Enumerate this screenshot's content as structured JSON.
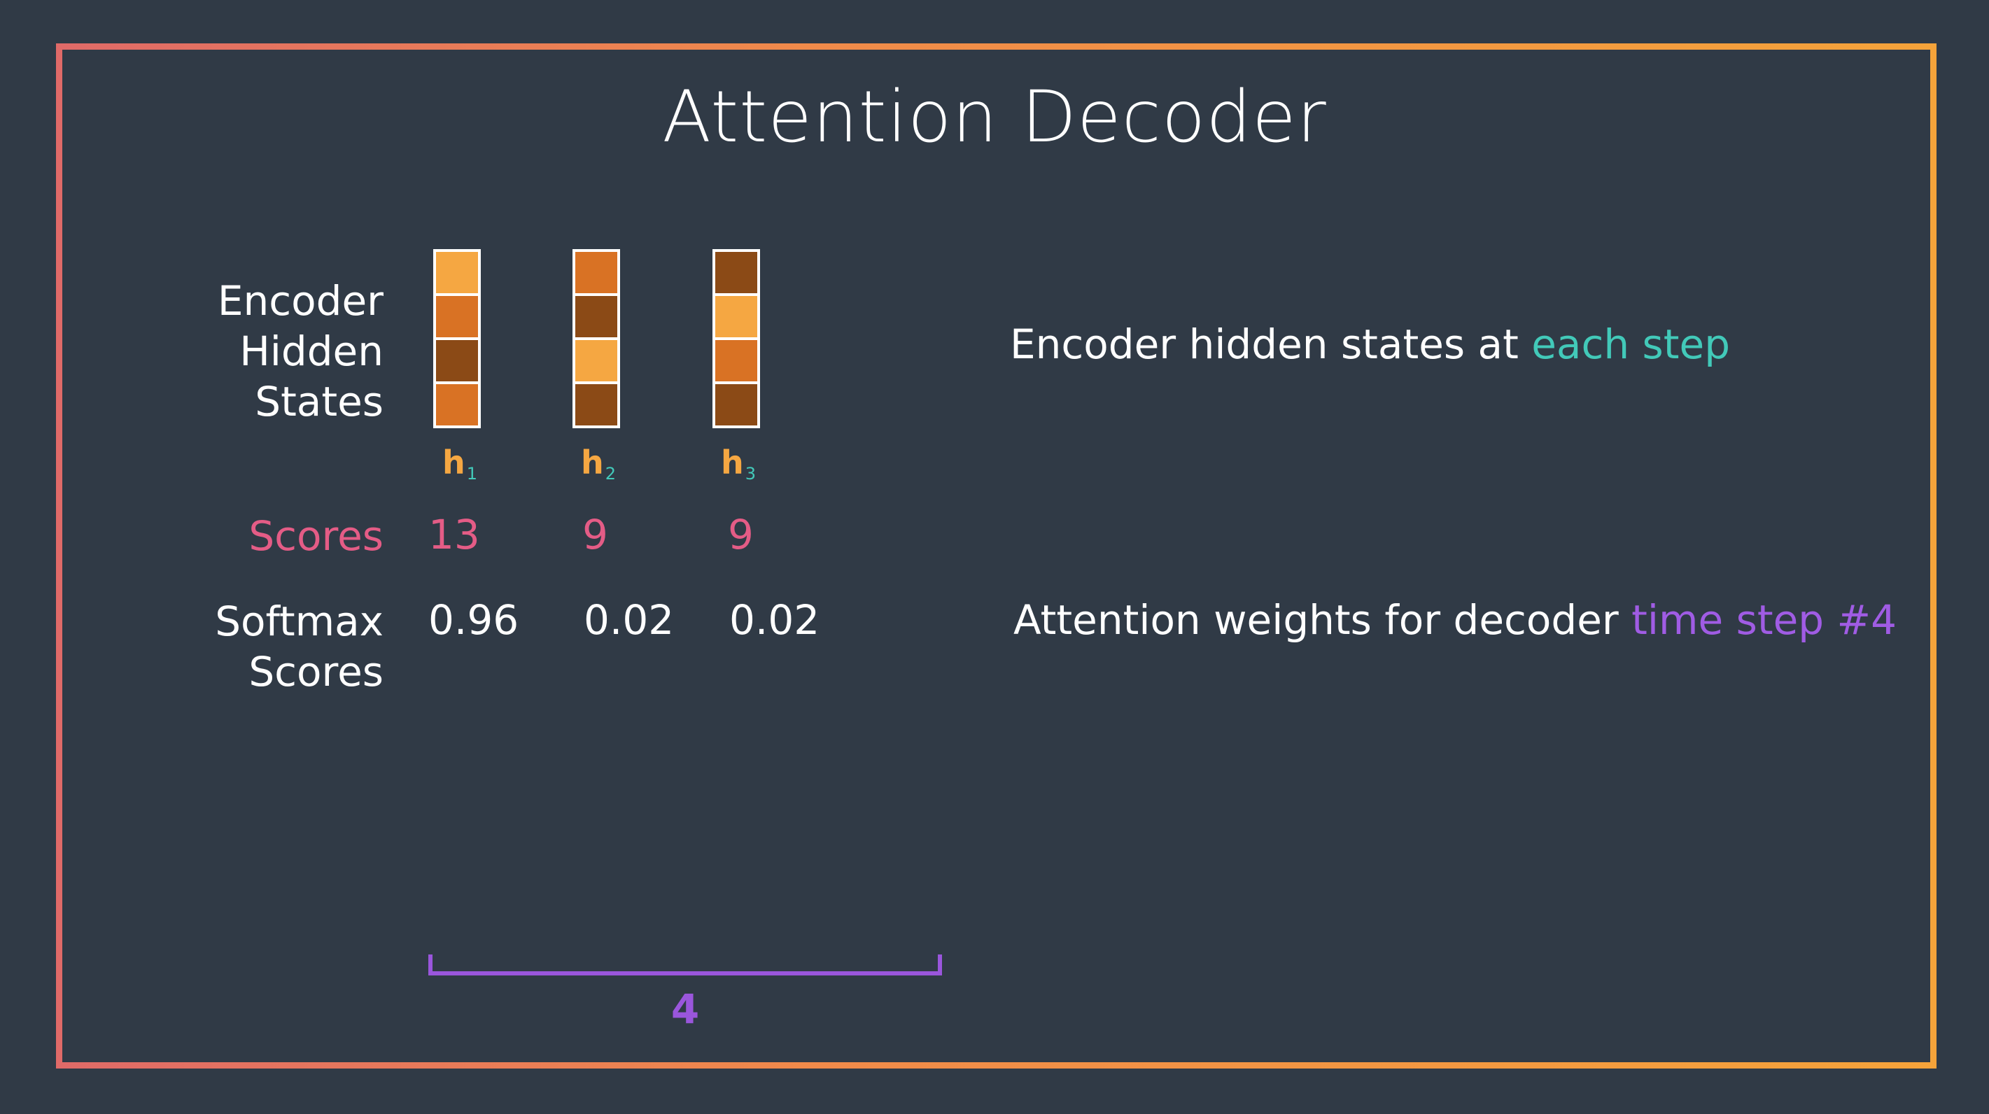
{
  "title": "Attention Decoder",
  "labels": {
    "encoder_line1": "Encoder",
    "encoder_line2": "Hidden",
    "encoder_line3": "States",
    "scores": "Scores",
    "softmax_line1": "Softmax",
    "softmax_line2": "Scores"
  },
  "hidden_states": [
    {
      "name": "h",
      "index": "1",
      "score": "13",
      "softmax": "0.96",
      "cells": [
        "light",
        "mid",
        "dark",
        "mid"
      ]
    },
    {
      "name": "h",
      "index": "2",
      "score": "9",
      "softmax": "0.02",
      "cells": [
        "mid",
        "dark",
        "light",
        "dark"
      ]
    },
    {
      "name": "h",
      "index": "3",
      "score": "9",
      "softmax": "0.02",
      "cells": [
        "dark",
        "light",
        "mid",
        "dark"
      ]
    }
  ],
  "notes": {
    "encoder_prefix": "Encoder hidden states at ",
    "encoder_highlight": "each step",
    "attention_prefix": "Attention weights for decoder ",
    "attention_highlight": "time step #4"
  },
  "decoder_step": "4",
  "colors": {
    "background": "#303a46",
    "cell_light": "#f5a742",
    "cell_mid": "#d97224",
    "cell_dark": "#8b4a16",
    "scores": "#e45c86",
    "teal": "#42c9b9",
    "purple": "#a05ce4"
  }
}
